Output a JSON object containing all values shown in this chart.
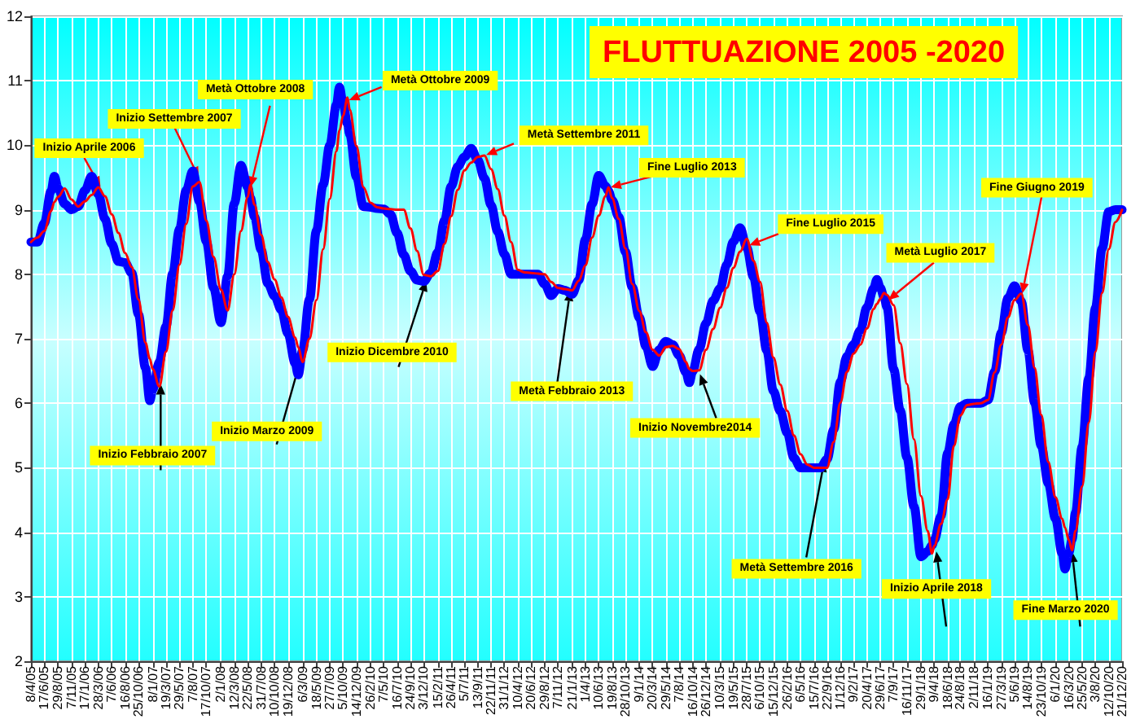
{
  "chart_data": {
    "type": "line",
    "title": "FLUTTUAZIONE 2005 -2020",
    "x": [
      "2005-04-08",
      "2005-05-13",
      "2005-06-17",
      "2005-07-23",
      "2005-08-09",
      "2005-08-29",
      "2005-10-03",
      "2005-11-07",
      "2005-12-12",
      "2006-01-17",
      "2006-02-21",
      "2006-03-28",
      "2006-05-02",
      "2006-06-07",
      "2006-07-12",
      "2006-08-16",
      "2006-09-20",
      "2006-10-25",
      "2006-12-01",
      "2006-12-24",
      "2007-01-08",
      "2007-02-12",
      "2007-03-19",
      "2007-04-23",
      "2007-05-29",
      "2007-07-03",
      "2007-08-07",
      "2007-09-11",
      "2007-10-17",
      "2007-11-24",
      "2008-01-02",
      "2008-02-06",
      "2008-03-12",
      "2008-04-16",
      "2008-05-22",
      "2008-06-04",
      "2008-06-26",
      "2008-07-31",
      "2008-09-04",
      "2008-10-10",
      "2008-11-14",
      "2008-12-19",
      "2009-01-26",
      "2009-02-11",
      "2009-03-06",
      "2009-04-11",
      "2009-05-18",
      "2009-06-22",
      "2009-07-27",
      "2009-08-31",
      "2009-09-16",
      "2009-10-05",
      "2009-10-28",
      "2009-11-09",
      "2009-12-14",
      "2010-01-20",
      "2010-02-26",
      "2010-04-02",
      "2010-05-07",
      "2010-06-11",
      "2010-07-16",
      "2010-08-20",
      "2010-09-24",
      "2010-10-29",
      "2010-12-03",
      "2011-01-09",
      "2011-02-15",
      "2011-03-22",
      "2011-04-26",
      "2011-05-31",
      "2011-07-05",
      "2011-08-09",
      "2011-09-13",
      "2011-10-18",
      "2011-11-22",
      "2011-12-27",
      "2012-01-31",
      "2012-03-06",
      "2012-04-10",
      "2012-05-15",
      "2012-06-20",
      "2012-07-25",
      "2012-08-29",
      "2012-10-03",
      "2012-11-07",
      "2012-12-14",
      "2013-01-21",
      "2013-02-25",
      "2013-04-01",
      "2013-05-06",
      "2013-06-10",
      "2013-07-15",
      "2013-07-31",
      "2013-08-19",
      "2013-09-23",
      "2013-10-28",
      "2013-12-03",
      "2014-01-09",
      "2014-02-13",
      "2014-03-20",
      "2014-04-24",
      "2014-05-29",
      "2014-07-03",
      "2014-08-07",
      "2014-09-11",
      "2014-09-29",
      "2014-10-16",
      "2014-11-20",
      "2014-12-26",
      "2015-02-01",
      "2015-03-10",
      "2015-04-14",
      "2015-05-19",
      "2015-06-23",
      "2015-07-28",
      "2015-09-01",
      "2015-10-06",
      "2015-11-10",
      "2015-12-15",
      "2016-01-20",
      "2016-02-26",
      "2016-04-01",
      "2016-05-06",
      "2016-06-10",
      "2016-07-15",
      "2016-08-18",
      "2016-09-22",
      "2016-10-27",
      "2016-12-01",
      "2017-01-05",
      "2017-02-09",
      "2017-03-16",
      "2017-04-20",
      "2017-05-25",
      "2017-06-11",
      "2017-06-29",
      "2017-07-19",
      "2017-08-03",
      "2017-09-07",
      "2017-10-12",
      "2017-11-16",
      "2017-12-23",
      "2018-01-29",
      "2018-03-05",
      "2018-03-28",
      "2018-04-09",
      "2018-05-14",
      "2018-06-18",
      "2018-07-21",
      "2018-08-24",
      "2018-09-28",
      "2018-11-02",
      "2018-12-09",
      "2019-01-16",
      "2019-02-20",
      "2019-03-27",
      "2019-05-01",
      "2019-06-05",
      "2019-07-10",
      "2019-08-14",
      "2019-09-18",
      "2019-10-23",
      "2019-11-29",
      "2020-01-06",
      "2020-02-10",
      "2020-02-25",
      "2020-03-16",
      "2020-04-02",
      "2020-04-20",
      "2020-05-25",
      "2020-06-29",
      "2020-08-03",
      "2020-09-07",
      "2020-10-12",
      "2020-11-16",
      "2020-12-21"
    ],
    "series": [
      {
        "color": "#0000ff",
        "values": [
          8.5,
          8.5,
          8.79,
          9.29,
          9.52,
          9.33,
          9.09,
          9.0,
          9.05,
          9.3,
          9.52,
          9.24,
          8.86,
          8.47,
          8.2,
          8.18,
          8.02,
          7.38,
          6.55,
          6.04,
          6.21,
          6.64,
          7.19,
          8.01,
          8.7,
          9.3,
          9.6,
          9.13,
          8.51,
          7.79,
          7.25,
          7.97,
          9.1,
          9.69,
          9.35,
          9.19,
          8.89,
          8.38,
          7.86,
          7.66,
          7.45,
          7.08,
          6.62,
          6.44,
          6.82,
          7.61,
          8.68,
          9.39,
          10.0,
          10.63,
          10.9,
          10.64,
          10.33,
          10.17,
          9.51,
          9.05,
          9.04,
          9.02,
          9.01,
          8.93,
          8.64,
          8.3,
          8.05,
          7.91,
          7.89,
          8.02,
          8.34,
          8.83,
          9.36,
          9.67,
          9.82,
          9.95,
          9.77,
          9.49,
          9.07,
          8.66,
          8.31,
          8.0,
          8.0,
          8.0,
          8.0,
          8.0,
          7.85,
          7.67,
          7.78,
          7.75,
          7.69,
          7.91,
          8.54,
          9.09,
          9.53,
          9.37,
          9.29,
          9.15,
          8.89,
          8.35,
          7.8,
          7.33,
          6.88,
          6.57,
          6.83,
          6.96,
          6.91,
          6.74,
          6.48,
          6.32,
          6.49,
          6.84,
          7.24,
          7.59,
          7.78,
          8.15,
          8.51,
          8.72,
          8.41,
          7.96,
          7.42,
          6.82,
          6.19,
          5.88,
          5.54,
          5.15,
          5.0,
          5.0,
          5.0,
          5.0,
          5.13,
          5.59,
          6.33,
          6.73,
          6.91,
          7.13,
          7.49,
          7.78,
          7.92,
          7.79,
          7.64,
          7.49,
          6.53,
          5.89,
          5.16,
          4.4,
          3.62,
          3.7,
          3.8,
          3.88,
          4.25,
          5.23,
          5.67,
          5.95,
          6.0,
          6.0,
          6.0,
          6.05,
          6.49,
          7.09,
          7.63,
          7.82,
          7.58,
          6.82,
          6.01,
          5.34,
          4.76,
          4.21,
          3.67,
          3.43,
          3.68,
          3.89,
          4.3,
          5.33,
          6.39,
          7.48,
          8.4,
          8.97,
          9.0,
          9.0
        ]
      },
      {
        "color": "#ff0000",
        "values": [
          8.5,
          8.57,
          8.67,
          8.98,
          9.12,
          9.2,
          9.33,
          9.16,
          9.05,
          9.13,
          9.23,
          9.35,
          9.21,
          8.93,
          8.64,
          8.33,
          8.11,
          7.61,
          6.94,
          6.69,
          6.53,
          6.26,
          6.8,
          7.44,
          8.15,
          8.78,
          9.36,
          9.43,
          8.83,
          8.27,
          7.76,
          7.44,
          8.0,
          8.67,
          9.2,
          9.39,
          9.08,
          8.61,
          8.19,
          7.92,
          7.64,
          7.34,
          7.02,
          6.87,
          6.64,
          7.0,
          7.6,
          8.39,
          9.17,
          9.91,
          10.23,
          10.46,
          10.74,
          10.55,
          9.99,
          9.35,
          9.11,
          9.04,
          9.02,
          9.01,
          9.0,
          9.0,
          8.71,
          8.36,
          7.99,
          7.97,
          8.05,
          8.47,
          8.9,
          9.31,
          9.61,
          9.73,
          9.82,
          9.84,
          9.63,
          9.32,
          8.91,
          8.5,
          8.07,
          8.03,
          8.02,
          8.01,
          8.0,
          7.88,
          7.79,
          7.77,
          7.75,
          7.9,
          8.14,
          8.57,
          8.91,
          9.21,
          9.35,
          9.18,
          8.86,
          8.4,
          7.85,
          7.43,
          7.1,
          6.83,
          6.74,
          6.87,
          6.89,
          6.84,
          6.64,
          6.53,
          6.5,
          6.51,
          6.83,
          7.15,
          7.48,
          7.79,
          8.1,
          8.35,
          8.55,
          8.21,
          7.88,
          7.25,
          6.71,
          6.29,
          5.88,
          5.5,
          5.21,
          5.05,
          5.0,
          5.0,
          5.0,
          5.4,
          6.01,
          6.49,
          6.77,
          6.91,
          7.16,
          7.46,
          7.54,
          7.62,
          7.71,
          7.68,
          7.52,
          6.93,
          6.3,
          5.44,
          4.56,
          4.02,
          3.67,
          3.79,
          4.13,
          4.51,
          5.34,
          5.81,
          5.97,
          5.99,
          6.0,
          6.05,
          6.48,
          6.91,
          7.33,
          7.6,
          7.7,
          7.21,
          6.55,
          5.82,
          5.09,
          4.54,
          4.21,
          4.07,
          3.88,
          3.72,
          4.02,
          4.71,
          5.7,
          6.8,
          7.71,
          8.39,
          8.81,
          9.0
        ]
      }
    ],
    "xlim": [
      "2005-04-08",
      "2020-12-21"
    ],
    "xticks": [
      {
        "value": "2005-04-08",
        "label": "8/4/05"
      },
      {
        "value": "2005-06-17",
        "label": "17/6/05"
      },
      {
        "value": "2005-08-29",
        "label": "29/8/05"
      },
      {
        "value": "2005-11-07",
        "label": "7/11/05"
      },
      {
        "value": "2006-01-17",
        "label": "17/1/06"
      },
      {
        "value": "2006-03-28",
        "label": "28/3/06"
      },
      {
        "value": "2006-06-07",
        "label": "7/6/06"
      },
      {
        "value": "2006-08-16",
        "label": "16/8/06"
      },
      {
        "value": "2006-10-25",
        "label": "25/10/06"
      },
      {
        "value": "2007-01-08",
        "label": "8/1/07"
      },
      {
        "value": "2007-03-19",
        "label": "19/3/07"
      },
      {
        "value": "2007-05-29",
        "label": "29/5/07"
      },
      {
        "value": "2007-08-07",
        "label": "7/8/07"
      },
      {
        "value": "2007-10-17",
        "label": "17/10/07"
      },
      {
        "value": "2008-01-02",
        "label": "2/1/08"
      },
      {
        "value": "2008-03-12",
        "label": "12/3/08"
      },
      {
        "value": "2008-05-22",
        "label": "22/5/08"
      },
      {
        "value": "2008-07-31",
        "label": "31/7/08"
      },
      {
        "value": "2008-10-10",
        "label": "10/10/08"
      },
      {
        "value": "2008-12-19",
        "label": "19/12/08"
      },
      {
        "value": "2009-03-06",
        "label": "6/3/09"
      },
      {
        "value": "2009-05-18",
        "label": "18/5/09"
      },
      {
        "value": "2009-07-27",
        "label": "27/7/09"
      },
      {
        "value": "2009-10-05",
        "label": "5/10/09"
      },
      {
        "value": "2009-12-14",
        "label": "14/12/09"
      },
      {
        "value": "2010-02-26",
        "label": "26/2/10"
      },
      {
        "value": "2010-05-07",
        "label": "7/5/10"
      },
      {
        "value": "2010-07-16",
        "label": "16/7/10"
      },
      {
        "value": "2010-09-24",
        "label": "24/9/10"
      },
      {
        "value": "2010-12-03",
        "label": "3/12/10"
      },
      {
        "value": "2011-02-15",
        "label": "15/2/11"
      },
      {
        "value": "2011-04-26",
        "label": "26/4/11"
      },
      {
        "value": "2011-07-05",
        "label": "5/7/11"
      },
      {
        "value": "2011-09-13",
        "label": "13/9/11"
      },
      {
        "value": "2011-11-22",
        "label": "22/11/11"
      },
      {
        "value": "2012-01-31",
        "label": "31/1/12"
      },
      {
        "value": "2012-04-10",
        "label": "10/4/12"
      },
      {
        "value": "2012-06-20",
        "label": "20/6/12"
      },
      {
        "value": "2012-08-29",
        "label": "29/8/12"
      },
      {
        "value": "2012-11-07",
        "label": "7/11/12"
      },
      {
        "value": "2013-01-21",
        "label": "21/1/13"
      },
      {
        "value": "2013-04-01",
        "label": "1/4/13"
      },
      {
        "value": "2013-06-10",
        "label": "10/6/13"
      },
      {
        "value": "2013-08-19",
        "label": "19/8/13"
      },
      {
        "value": "2013-10-28",
        "label": "28/10/13"
      },
      {
        "value": "2014-01-09",
        "label": "9/1/14"
      },
      {
        "value": "2014-03-20",
        "label": "20/3/14"
      },
      {
        "value": "2014-05-29",
        "label": "29/5/14"
      },
      {
        "value": "2014-08-07",
        "label": "7/8/14"
      },
      {
        "value": "2014-10-16",
        "label": "16/10/14"
      },
      {
        "value": "2014-12-26",
        "label": "26/12/14"
      },
      {
        "value": "2015-03-10",
        "label": "10/3/15"
      },
      {
        "value": "2015-05-19",
        "label": "19/5/15"
      },
      {
        "value": "2015-07-28",
        "label": "28/7/15"
      },
      {
        "value": "2015-10-06",
        "label": "6/10/15"
      },
      {
        "value": "2015-12-15",
        "label": "15/12/15"
      },
      {
        "value": "2016-02-26",
        "label": "26/2/16"
      },
      {
        "value": "2016-05-06",
        "label": "6/5/16"
      },
      {
        "value": "2016-07-15",
        "label": "15/7/16"
      },
      {
        "value": "2016-09-22",
        "label": "22/9/16"
      },
      {
        "value": "2016-12-01",
        "label": "1/12/16"
      },
      {
        "value": "2017-02-09",
        "label": "9/2/17"
      },
      {
        "value": "2017-04-20",
        "label": "20/4/17"
      },
      {
        "value": "2017-06-29",
        "label": "29/6/17"
      },
      {
        "value": "2017-09-07",
        "label": "7/9/17"
      },
      {
        "value": "2017-11-16",
        "label": "16/11/17"
      },
      {
        "value": "2018-01-29",
        "label": "29/1/18"
      },
      {
        "value": "2018-04-09",
        "label": "9/4/18"
      },
      {
        "value": "2018-06-18",
        "label": "18/6/18"
      },
      {
        "value": "2018-08-24",
        "label": "24/8/18"
      },
      {
        "value": "2018-11-02",
        "label": "2/11/18"
      },
      {
        "value": "2019-01-16",
        "label": "16/1/19"
      },
      {
        "value": "2019-03-27",
        "label": "27/3/19"
      },
      {
        "value": "2019-06-05",
        "label": "5/6/19"
      },
      {
        "value": "2019-08-14",
        "label": "14/8/19"
      },
      {
        "value": "2019-10-23",
        "label": "23/10/19"
      },
      {
        "value": "2020-01-06",
        "label": "6/1/20"
      },
      {
        "value": "2020-03-16",
        "label": "16/3/20"
      },
      {
        "value": "2020-05-25",
        "label": "25/5/20"
      },
      {
        "value": "2020-08-03",
        "label": "3/8/20"
      },
      {
        "value": "2020-10-12",
        "label": "12/10/20"
      },
      {
        "value": "2020-12-21",
        "label": "21/12/20"
      }
    ],
    "ylim": [
      2,
      12
    ],
    "yticks": [
      2,
      3,
      4,
      5,
      6,
      7,
      8,
      9,
      10,
      11,
      12
    ],
    "grid": true,
    "annotations": [
      {
        "text": "Inizio Aprile 2006",
        "x": "2006-04-09",
        "y": 9.35
      },
      {
        "text": "Inizio Settembre 2007",
        "x": "2007-09-07",
        "y": 9.5
      },
      {
        "text": "Metà Ottobre 2008",
        "x": "2008-06-05",
        "y": 9.35
      },
      {
        "text": "Inizio Febbraio 2007",
        "x": "2007-02-19",
        "y": 6.3
      },
      {
        "text": "Inizio Marzo 2009",
        "x": "2009-02-26",
        "y": 6.7
      },
      {
        "text": "Metà Ottobre 2009",
        "x": "2009-11-05",
        "y": 10.7
      },
      {
        "text": "Inizio Dicembre 2010",
        "x": "2010-12-16",
        "y": 7.9
      },
      {
        "text": "Metà Settembre 2011",
        "x": "2011-10-27",
        "y": 9.85
      },
      {
        "text": "Metà Febbraio 2013",
        "x": "2013-01-11",
        "y": 7.75
      },
      {
        "text": "Fine Luglio 2013",
        "x": "2013-08-11",
        "y": 9.35
      },
      {
        "text": "Inizio Novembre2014",
        "x": "2014-11-24",
        "y": 6.45
      },
      {
        "text": "Fine Luglio 2015",
        "x": "2015-08-10",
        "y": 8.45
      },
      {
        "text": "Metà Settembre 2016",
        "x": "2016-09-07",
        "y": 5.1
      },
      {
        "text": "Metà Luglio 2017",
        "x": "2017-08-10",
        "y": 7.6
      },
      {
        "text": "Inizio Aprile 2018",
        "x": "2018-04-20",
        "y": 3.7
      },
      {
        "text": "Fine Giugno 2019",
        "x": "2019-07-15",
        "y": 7.7
      },
      {
        "text": "Fine Marzo 2020",
        "x": "2020-04-02",
        "y": 3.7
      }
    ]
  }
}
